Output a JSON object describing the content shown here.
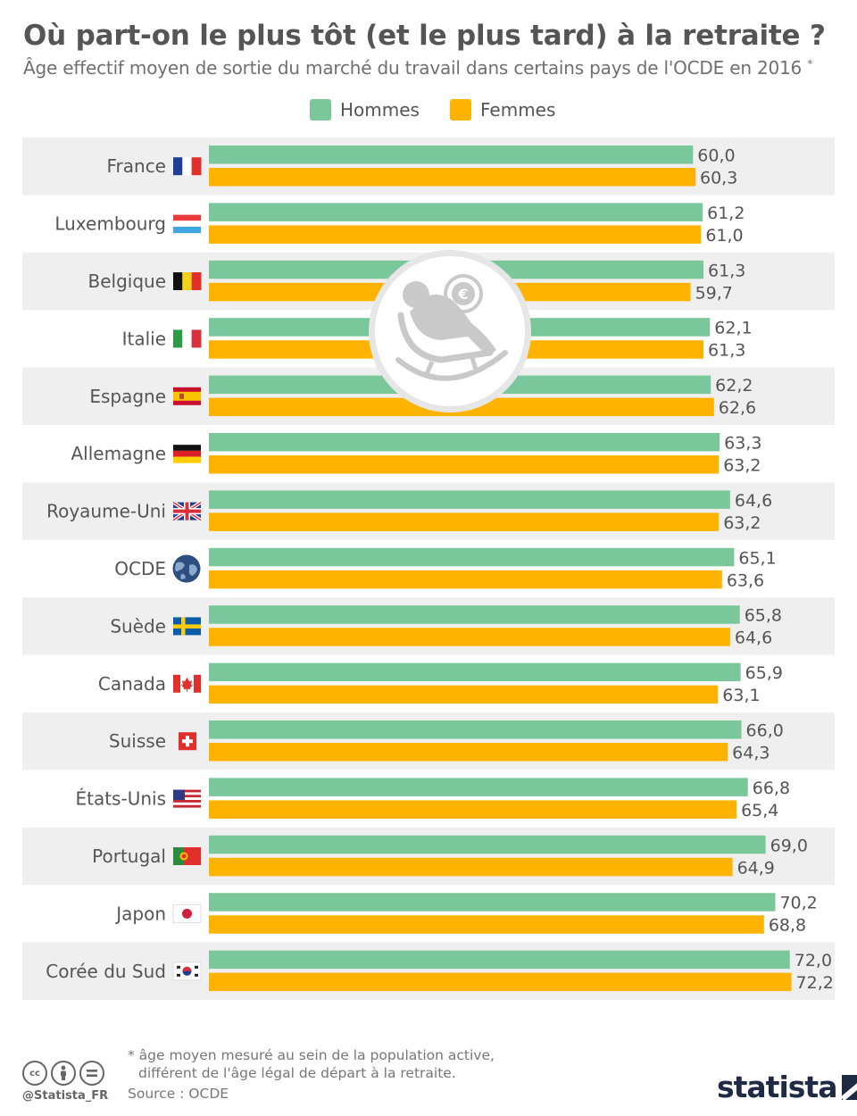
{
  "title": "Où part-on le plus tôt (et le plus tard) à la retraite ?",
  "subtitle": "Âge effectif moyen de sortie du marché du travail dans certains pays de l'OCDE en 2016",
  "subtitle_mark": "*",
  "colors": {
    "hommes": "#79c79a",
    "femmes": "#fdb300",
    "band": "#efefef",
    "text": "#555555",
    "value_text": "#555555"
  },
  "legend": [
    {
      "label": "Hommes",
      "color": "#79c79a"
    },
    {
      "label": "Femmes",
      "color": "#fdb300"
    }
  ],
  "chart_data": {
    "type": "bar",
    "orientation": "horizontal",
    "title": "Où part-on le plus tôt (et le plus tard) à la retraite ?",
    "categories": [
      "France",
      "Luxembourg",
      "Belgique",
      "Italie",
      "Espagne",
      "Allemagne",
      "Royaume-Uni",
      "OCDE",
      "Suède",
      "Canada",
      "Suisse",
      "États-Unis",
      "Portugal",
      "Japon",
      "Corée du Sud"
    ],
    "flags": [
      "flag-france",
      "flag-luxembourg",
      "flag-belgium",
      "flag-italy",
      "flag-spain",
      "flag-germany",
      "flag-uk",
      "globe",
      "flag-sweden",
      "flag-canada",
      "flag-switzerland",
      "flag-usa",
      "flag-portugal",
      "flag-japan",
      "flag-south-korea"
    ],
    "series": [
      {
        "name": "Hommes",
        "values": [
          60.0,
          61.2,
          61.3,
          62.1,
          62.2,
          63.3,
          64.6,
          65.1,
          65.8,
          65.9,
          66.0,
          66.8,
          69.0,
          70.2,
          72.0
        ],
        "labels": [
          "60,0",
          "61,2",
          "61,3",
          "62,1",
          "62,2",
          "63,3",
          "64,6",
          "65,1",
          "65,8",
          "65,9",
          "66,0",
          "66,8",
          "69,0",
          "70,2",
          "72,0"
        ]
      },
      {
        "name": "Femmes",
        "values": [
          60.3,
          61.0,
          59.7,
          61.3,
          62.6,
          63.2,
          63.2,
          63.6,
          64.6,
          63.1,
          64.3,
          65.4,
          64.9,
          68.8,
          72.2
        ],
        "labels": [
          "60,3",
          "61,0",
          "59,7",
          "61,3",
          "62,6",
          "63,2",
          "63,2",
          "63,6",
          "64,6",
          "63,1",
          "64,3",
          "65,4",
          "64,9",
          "68,8",
          "72,2"
        ]
      }
    ],
    "grid": false,
    "legend_position": "top-center",
    "center_icon": "retirement-rocking-chair-icon"
  },
  "footnote": {
    "line1": "* âge moyen mesuré au sein de la population active,",
    "line2": "différent de l'âge légal de départ à la retraite."
  },
  "source": "Source : OCDE",
  "handle": "@Statista_FR",
  "brand": "statista",
  "cc_icons": [
    "cc",
    "by",
    "nd"
  ]
}
